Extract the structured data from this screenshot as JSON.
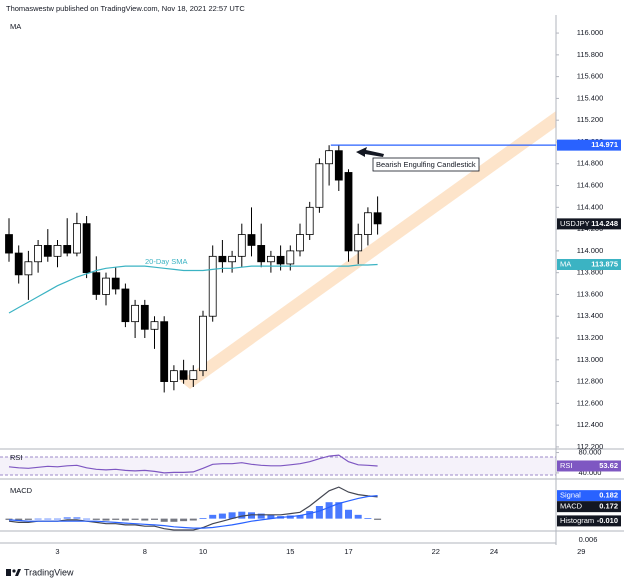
{
  "header": {
    "publisher": "Thomaswestw published on TradingView.com, Nov 18, 2021 22:57 UTC",
    "brand": "TradingView"
  },
  "chart_data": [
    {
      "type": "candlestick",
      "title": "MA",
      "symbol": "USDJPY",
      "categories": [
        null,
        null,
        null,
        null,
        null,
        "3",
        null,
        null,
        null,
        null,
        null,
        null,
        null,
        null,
        "8",
        null,
        null,
        null,
        null,
        null,
        "10",
        null,
        null,
        null,
        null,
        null,
        null,
        null,
        null,
        "15",
        null,
        null,
        null,
        null,
        null,
        "17",
        null,
        null,
        null,
        null,
        null,
        null,
        null,
        null,
        "22",
        null,
        null,
        null,
        null,
        null,
        "24",
        null,
        null,
        null,
        null,
        null,
        null,
        null,
        null,
        "29"
      ],
      "open": [
        114.15,
        113.98,
        113.78,
        113.9,
        114.05,
        113.95,
        114.05,
        113.98,
        114.25,
        113.8,
        113.6,
        113.75,
        113.65,
        113.35,
        113.5,
        113.28,
        113.35,
        112.8,
        112.9,
        112.82,
        112.9,
        113.4,
        113.95,
        113.9,
        113.95,
        114.15,
        114.05,
        113.9,
        113.95,
        113.88,
        114.0,
        114.15,
        114.4,
        114.8,
        114.92,
        114.72,
        114.0,
        114.15,
        114.35,
        null,
        null,
        null,
        null,
        null,
        null,
        null,
        null,
        null,
        null,
        null,
        null,
        null,
        null,
        null,
        null,
        null,
        null,
        null,
        null,
        null
      ],
      "high": [
        114.3,
        114.05,
        114.0,
        114.1,
        114.2,
        114.1,
        114.3,
        114.35,
        114.32,
        113.95,
        113.8,
        113.85,
        113.7,
        113.55,
        113.55,
        113.4,
        113.4,
        112.95,
        113.0,
        112.95,
        113.45,
        114.05,
        114.1,
        114.0,
        114.25,
        114.4,
        114.25,
        114.0,
        114.05,
        114.05,
        114.25,
        114.45,
        114.85,
        114.97,
        114.97,
        114.75,
        114.25,
        114.4,
        114.5,
        null,
        null,
        null,
        null,
        null,
        null,
        null,
        null,
        null,
        null,
        null,
        null,
        null,
        null,
        null,
        null,
        null,
        null,
        null,
        null,
        null
      ],
      "low": [
        113.9,
        113.7,
        113.55,
        113.8,
        113.9,
        113.85,
        113.95,
        113.95,
        113.75,
        113.55,
        113.5,
        113.6,
        113.3,
        113.2,
        113.2,
        113.1,
        112.7,
        112.72,
        112.78,
        112.75,
        112.85,
        113.35,
        113.8,
        113.8,
        113.85,
        113.95,
        113.85,
        113.8,
        113.82,
        113.82,
        113.95,
        114.1,
        114.35,
        114.6,
        114.55,
        113.9,
        113.88,
        114.05,
        114.15,
        null,
        null,
        null,
        null,
        null,
        null,
        null,
        null,
        null,
        null,
        null,
        null,
        null,
        null,
        null,
        null,
        null,
        null,
        null,
        null,
        null
      ],
      "close": [
        113.98,
        113.78,
        113.9,
        114.05,
        113.95,
        114.05,
        113.98,
        114.25,
        113.8,
        113.6,
        113.75,
        113.65,
        113.35,
        113.5,
        113.28,
        113.35,
        112.8,
        112.9,
        112.82,
        112.9,
        113.4,
        113.95,
        113.9,
        113.95,
        114.15,
        114.05,
        113.9,
        113.95,
        113.88,
        114.0,
        114.15,
        114.4,
        114.8,
        114.92,
        114.65,
        114.0,
        114.15,
        114.35,
        114.248,
        null,
        null,
        null,
        null,
        null,
        null,
        null,
        null,
        null,
        null,
        null,
        null,
        null,
        null,
        null,
        null,
        null,
        null,
        null,
        null,
        null
      ],
      "up_color": "#ffffff",
      "down_color": "#000000",
      "series": [
        {
          "name": "20-Day SMA",
          "color": "#3bb3c3",
          "values": [
            113.43,
            113.48,
            113.53,
            113.58,
            113.63,
            113.68,
            113.72,
            113.76,
            113.79,
            113.82,
            113.84,
            113.85,
            113.86,
            113.86,
            113.86,
            113.85,
            113.84,
            113.83,
            113.82,
            113.82,
            113.82,
            113.83,
            113.84,
            113.84,
            113.85,
            113.86,
            113.86,
            113.86,
            113.86,
            113.86,
            113.86,
            113.86,
            113.86,
            113.86,
            113.86,
            113.86,
            113.87,
            113.87,
            113.875,
            null,
            null,
            null,
            null,
            null,
            null,
            null,
            null,
            null,
            null,
            null,
            null,
            null,
            null,
            null,
            null,
            null,
            null,
            null,
            null,
            null
          ]
        }
      ],
      "levels": [
        114.971
      ],
      "level_color": "#2962ff",
      "annotation": "Bearish Engulfing Candlestick",
      "ylim": [
        112.19,
        116.12
      ],
      "yticks": [
        {
          "value": 112.2,
          "label": "112.200"
        },
        {
          "value": 112.4,
          "label": "112.400"
        },
        {
          "value": 112.6,
          "label": "112.600"
        },
        {
          "value": 112.8,
          "label": "112.800"
        },
        {
          "value": 113,
          "label": "113.000"
        },
        {
          "value": 113.2,
          "label": "113.200"
        },
        {
          "value": 113.4,
          "label": "113.400"
        },
        {
          "value": 113.6,
          "label": "113.600"
        },
        {
          "value": 113.8,
          "label": "113.800"
        },
        {
          "value": 114,
          "label": "114.000"
        },
        {
          "value": 114.2,
          "label": "114.200"
        },
        {
          "value": 114.4,
          "label": "114.400"
        },
        {
          "value": 114.6,
          "label": "114.600"
        },
        {
          "value": 114.8,
          "label": "114.800"
        },
        {
          "value": 115,
          "label": "115.000"
        },
        {
          "value": 115.2,
          "label": "115.200"
        },
        {
          "value": 115.4,
          "label": "115.400"
        },
        {
          "value": 115.6,
          "label": "115.600"
        },
        {
          "value": 115.8,
          "label": "115.800"
        },
        {
          "value": 116,
          "label": "116.000"
        }
      ]
    },
    {
      "type": "line",
      "title": "RSI",
      "series": [
        {
          "name": "RSI",
          "color": "#7e57c2",
          "values": [
            52,
            50,
            49,
            51,
            53,
            52,
            54,
            55,
            50,
            47,
            46,
            47,
            45,
            44,
            45,
            43,
            40,
            41,
            41,
            42,
            49,
            57,
            58,
            58,
            60,
            57,
            55,
            54,
            54,
            56,
            58,
            62,
            68,
            73,
            75,
            62,
            56,
            55,
            53.62,
            null,
            null,
            null,
            null,
            null,
            null,
            null,
            null,
            null,
            null,
            null,
            null,
            null,
            null,
            null,
            null,
            null,
            null,
            null,
            null,
            null
          ]
        }
      ],
      "ylim": [
        30,
        85
      ],
      "yticks": [
        {
          "value": 80,
          "label": "80.000"
        },
        {
          "value": 40,
          "label": "40.000"
        }
      ]
    },
    {
      "type": "macd",
      "title": "MACD",
      "series": [
        {
          "name": "Histogram",
          "color_positive": "#2962ff",
          "color_negative": "#5d606b",
          "last_label": "-0.010",
          "values": [
            -0.01,
            -0.015,
            -0.01,
            0,
            0,
            0,
            0.01,
            0.01,
            0,
            -0.01,
            -0.015,
            -0.01,
            -0.015,
            -0.01,
            -0.015,
            -0.01,
            -0.025,
            -0.025,
            -0.02,
            -0.015,
            0.005,
            0.03,
            0.04,
            0.05,
            0.055,
            0.05,
            0.04,
            0.03,
            0.02,
            0.025,
            0.025,
            0.06,
            0.1,
            0.13,
            0.13,
            0.07,
            0.03,
            0.005,
            -0.01,
            null,
            null,
            null,
            null,
            null,
            null,
            null,
            null,
            null,
            null,
            null,
            null,
            null,
            null,
            null,
            null,
            null,
            null,
            null,
            null,
            null
          ]
        },
        {
          "name": "MACD",
          "color": "#434651",
          "values": [
            -0.02,
            -0.03,
            -0.03,
            -0.02,
            -0.02,
            -0.02,
            -0.01,
            -0.01,
            -0.02,
            -0.03,
            -0.04,
            -0.04,
            -0.05,
            -0.05,
            -0.06,
            -0.06,
            -0.08,
            -0.09,
            -0.09,
            -0.09,
            -0.07,
            -0.04,
            -0.02,
            0,
            0.02,
            0.03,
            0.03,
            0.03,
            0.03,
            0.04,
            0.05,
            0.1,
            0.16,
            0.22,
            0.25,
            0.21,
            0.19,
            0.18,
            0.172,
            null,
            null,
            null,
            null,
            null,
            null,
            null,
            null,
            null,
            null,
            null,
            null,
            null,
            null,
            null,
            null,
            null,
            null,
            null,
            null,
            null
          ]
        },
        {
          "name": "Signal",
          "color": "#2962ff",
          "values": [
            -0.01,
            -0.015,
            -0.02,
            -0.02,
            -0.02,
            -0.02,
            -0.02,
            -0.02,
            -0.02,
            -0.02,
            -0.025,
            -0.03,
            -0.035,
            -0.04,
            -0.045,
            -0.05,
            -0.055,
            -0.065,
            -0.07,
            -0.075,
            -0.075,
            -0.07,
            -0.06,
            -0.05,
            -0.035,
            -0.02,
            -0.01,
            0,
            0.01,
            0.015,
            0.025,
            0.04,
            0.06,
            0.09,
            0.12,
            0.14,
            0.16,
            0.175,
            0.182,
            null,
            null,
            null,
            null,
            null,
            null,
            null,
            null,
            null,
            null,
            null,
            null,
            null,
            null,
            null,
            null,
            null,
            null,
            null,
            null,
            null
          ]
        }
      ],
      "ylim": [
        -0.09,
        0.29
      ],
      "bottom_label": "0.006"
    }
  ]
}
